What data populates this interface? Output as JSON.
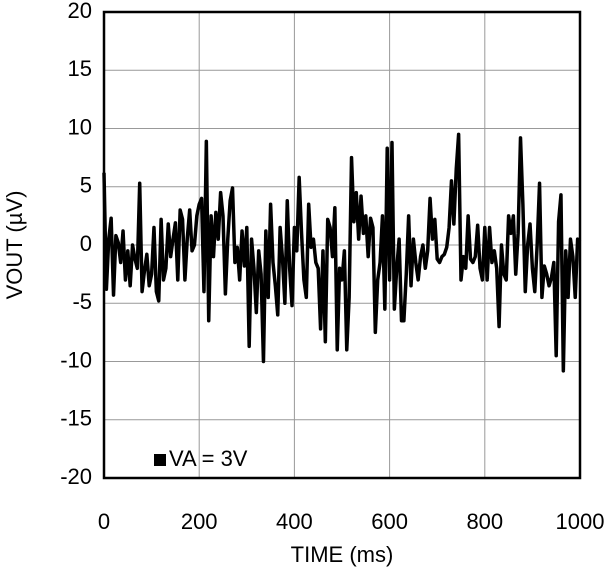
{
  "chart_data": {
    "type": "line",
    "x_label": "TIME (ms)",
    "y_label": "VOUT (µV)",
    "xlim": [
      0,
      1000
    ],
    "xticks": [
      0,
      200,
      400,
      600,
      800,
      1000
    ],
    "ylim": [
      -20,
      20
    ],
    "yticks": [
      -20,
      -15,
      -10,
      -5,
      0,
      5,
      10,
      15,
      20
    ],
    "grid": true,
    "legend": "lower left",
    "x": [
      0,
      5,
      10,
      15,
      20,
      25,
      30,
      35,
      40,
      45,
      50,
      55,
      60,
      65,
      70,
      75,
      80,
      85,
      90,
      95,
      100,
      105,
      110,
      115,
      120,
      125,
      130,
      135,
      140,
      145,
      150,
      155,
      160,
      165,
      170,
      175,
      180,
      185,
      190,
      195,
      200,
      205,
      210,
      215,
      220,
      225,
      230,
      235,
      240,
      245,
      250,
      255,
      260,
      265,
      270,
      275,
      280,
      285,
      290,
      295,
      300,
      305,
      310,
      315,
      320,
      325,
      330,
      335,
      340,
      345,
      350,
      355,
      360,
      365,
      370,
      375,
      380,
      385,
      390,
      395,
      400,
      405,
      410,
      415,
      420,
      425,
      430,
      435,
      440,
      445,
      450,
      455,
      460,
      465,
      470,
      475,
      480,
      485,
      490,
      495,
      500,
      505,
      510,
      515,
      520,
      525,
      530,
      535,
      540,
      545,
      550,
      555,
      560,
      565,
      570,
      575,
      580,
      585,
      590,
      595,
      600,
      605,
      610,
      615,
      620,
      625,
      630,
      635,
      640,
      645,
      650,
      655,
      660,
      665,
      670,
      675,
      680,
      685,
      690,
      695,
      700,
      705,
      710,
      715,
      720,
      725,
      730,
      735,
      740,
      745,
      750,
      755,
      760,
      765,
      770,
      775,
      780,
      785,
      790,
      795,
      800,
      805,
      810,
      815,
      820,
      825,
      830,
      835,
      840,
      845,
      850,
      855,
      860,
      865,
      870,
      875,
      880,
      885,
      890,
      895,
      900,
      905,
      910,
      915,
      920,
      925,
      930,
      935,
      940,
      945,
      950,
      955,
      960,
      965,
      970,
      975,
      980,
      985,
      990,
      995,
      1000
    ],
    "series": [
      {
        "name": "VA = 3V",
        "color": "#000000",
        "values": [
          6.2,
          -3.8,
          0.5,
          2.3,
          -4.3,
          0.8,
          0.2,
          -1.5,
          1.2,
          -3,
          -0.5,
          -3.5,
          0,
          -1.2,
          -2,
          5.3,
          -4,
          -2.2,
          -0.8,
          -3.5,
          -2.5,
          1.5,
          -4,
          -4.8,
          2.2,
          -3,
          -2,
          1.8,
          -1,
          0.5,
          1.9,
          -3,
          3,
          2.2,
          -3,
          0.6,
          3,
          -0.5,
          0,
          2.5,
          3.5,
          4,
          -4,
          8.9,
          -6.5,
          2.5,
          -1,
          2.8,
          0.5,
          4.5,
          2.5,
          -4.2,
          0.5,
          3.8,
          4.9,
          -1.5,
          -0.2,
          -3,
          1.2,
          -1.8,
          1.5,
          -8.7,
          0.5,
          -2,
          -5.8,
          -0.5,
          -2.5,
          -10,
          1.2,
          -4.5,
          3.5,
          -1.5,
          -3.5,
          -6,
          1.5,
          -1.2,
          -5,
          3.8,
          -2,
          -5.2,
          1.5,
          -0.5,
          5.8,
          1,
          -3,
          -4.5,
          3.5,
          -0.2,
          0.5,
          -1.5,
          -2,
          -7.2,
          -0.5,
          -8.3,
          2.2,
          1.5,
          -1,
          3.2,
          -9,
          -2,
          -3,
          -0.5,
          -9,
          -4.5,
          7.5,
          2,
          4.5,
          0.5,
          4.2,
          1,
          2.5,
          -1,
          2.3,
          1.5,
          -7.5,
          -3,
          -1.5,
          2.5,
          -5.5,
          8.3,
          -3,
          8.8,
          -5.5,
          -2,
          0.5,
          -6.5,
          -6.5,
          -2.5,
          2.5,
          -3.5,
          0.5,
          -1.5,
          -3,
          -1,
          0,
          -2,
          -0.5,
          4,
          0.5,
          2.2,
          -1.2,
          -1.5,
          -1,
          -0.8,
          -0.2,
          1.5,
          5.5,
          1.8,
          6.5,
          9.5,
          -3,
          -1,
          -2,
          2.5,
          -1.2,
          -1.5,
          -1,
          1.7,
          -2,
          -3,
          1.5,
          -3,
          1.5,
          -1.5,
          -0.5,
          -2,
          -7,
          0,
          -2.5,
          -3,
          2.5,
          1,
          2.5,
          -2.5,
          1,
          9.2,
          3.5,
          -4,
          0,
          1.8,
          -2,
          -4,
          0,
          5.3,
          -4.5,
          -1.8,
          -2.5,
          -3.5,
          -2.8,
          -1.5,
          -9.5,
          2,
          4.3,
          -10.8,
          -0.5,
          -4.5,
          0.5,
          -1,
          -4.5,
          0.5,
          0.3
        ]
      }
    ]
  }
}
